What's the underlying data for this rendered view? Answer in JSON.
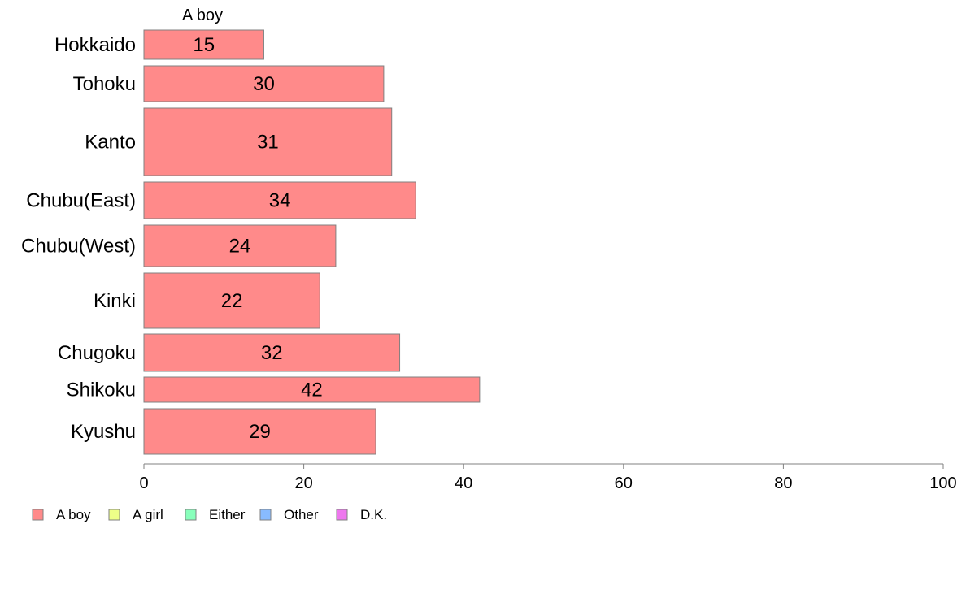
{
  "chart_data": {
    "type": "bar",
    "orientation": "horizontal",
    "stacked": true,
    "column_label": "A boy",
    "categories": [
      "Hokkaido",
      "Tohoku",
      "Kanto",
      "Chubu(East)",
      "Chubu(West)",
      "Kinki",
      "Chugoku",
      "Shikoku",
      "Kyushu"
    ],
    "series": [
      {
        "name": "A boy",
        "values": [
          15,
          30,
          31,
          34,
          24,
          22,
          32,
          42,
          29
        ],
        "color": "#ff8a8a"
      }
    ],
    "x_axis": {
      "range": [
        0,
        100
      ],
      "ticks": [
        0,
        20,
        40,
        60,
        80,
        100
      ]
    },
    "grid": false,
    "legend": {
      "position": "bottom-left",
      "entries": [
        {
          "label": "A boy",
          "color": "#ff8a8a"
        },
        {
          "label": "A girl",
          "color": "#eeff88"
        },
        {
          "label": "Either",
          "color": "#88ffbb"
        },
        {
          "label": "Other",
          "color": "#88bbff"
        },
        {
          "label": "D.K.",
          "color": "#ee77ee"
        }
      ]
    }
  }
}
